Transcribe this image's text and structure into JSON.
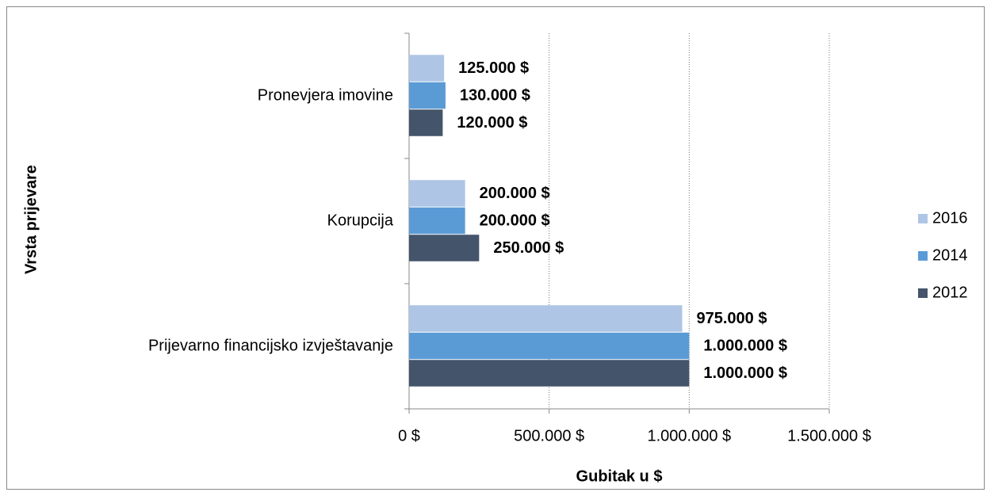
{
  "chart_data": {
    "type": "bar",
    "orientation": "horizontal",
    "x_label": "Gubitak u $",
    "y_label": "Vrsta prijevare",
    "categories": [
      "Pronevjera imovine",
      "Korupcija",
      "Prijevarno financijsko izvještavanje"
    ],
    "series": [
      {
        "name": "2016",
        "color": "#aec5e5",
        "values": [
          125000,
          200000,
          975000
        ],
        "value_labels": [
          "125.000 $",
          "200.000 $",
          "975.000 $"
        ]
      },
      {
        "name": "2014",
        "color": "#5b9bd5",
        "values": [
          130000,
          200000,
          1000000
        ],
        "value_labels": [
          "130.000 $",
          "200.000 $",
          "1.000.000 $"
        ]
      },
      {
        "name": "2012",
        "color": "#44546a",
        "values": [
          120000,
          250000,
          1000000
        ],
        "value_labels": [
          "120.000 $",
          "250.000 $",
          "1.000.000 $"
        ]
      }
    ],
    "xlim": [
      0,
      1500000
    ],
    "xticks": [
      {
        "value": 0,
        "label": "0 $"
      },
      {
        "value": 500000,
        "label": "500.000 $"
      },
      {
        "value": 1000000,
        "label": "1.000.000 $"
      },
      {
        "value": 1500000,
        "label": "1.500.000 $"
      }
    ],
    "grid": true,
    "legend": "right"
  }
}
